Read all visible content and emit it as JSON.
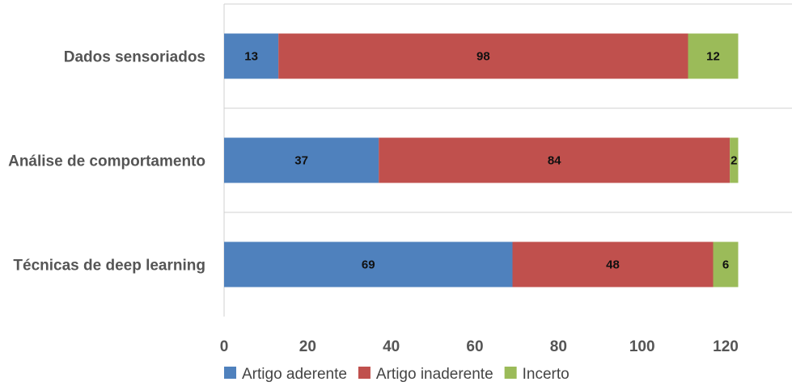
{
  "chart_data": {
    "type": "bar",
    "orientation": "horizontal",
    "stacked": true,
    "title": "",
    "xlabel": "",
    "ylabel": "",
    "categories": [
      "Dados sensoriados",
      "Análise de comportamento",
      "Técnicas de deep learning"
    ],
    "series": [
      {
        "name": "Artigo aderente",
        "values": [
          13,
          37,
          69
        ],
        "color": "#4f81bd"
      },
      {
        "name": "Artigo inaderente",
        "values": [
          98,
          84,
          48
        ],
        "color": "#c0504d"
      },
      {
        "name": "Incerto",
        "values": [
          12,
          2,
          6
        ],
        "color": "#9bbb59"
      }
    ],
    "xlim": [
      0,
      120
    ],
    "xticks": [
      0,
      20,
      40,
      60,
      80,
      100,
      120
    ],
    "grid": "horizontal separators between categories",
    "legend_position": "bottom"
  }
}
